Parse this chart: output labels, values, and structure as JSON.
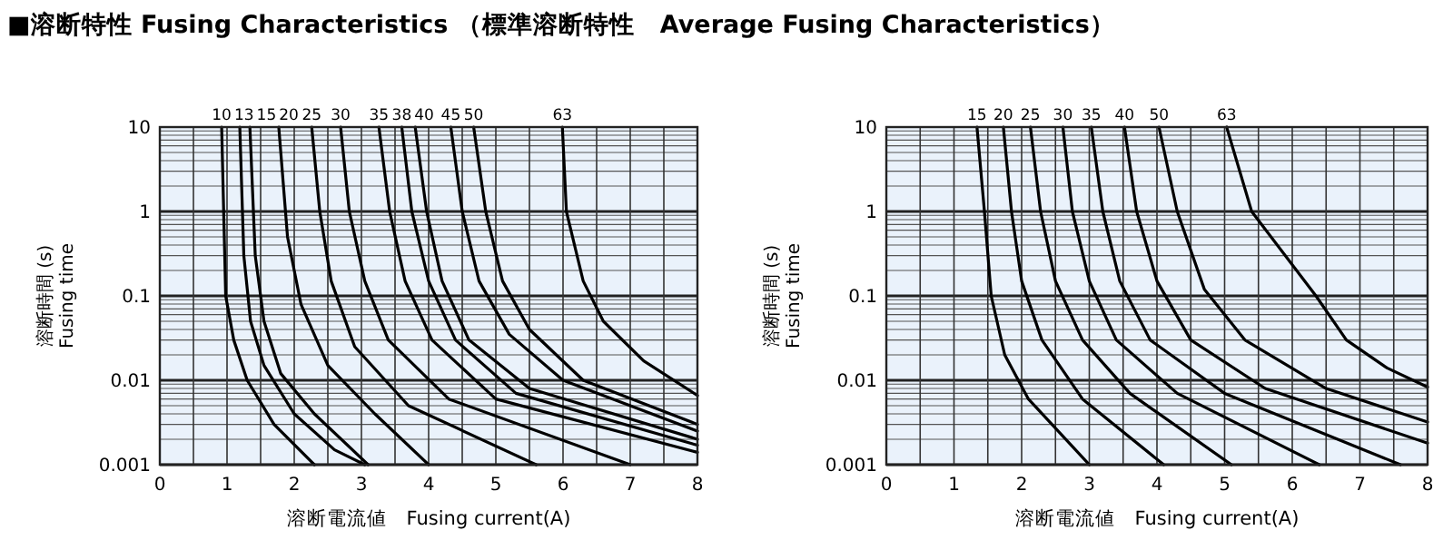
{
  "chart_data": [
    {
      "type": "line",
      "title": "■溶断特性  Fusing Characteristics （標準溶断特性　Average Fusing Characteristics）",
      "xlabel": "溶断電流値　Fusing current(A)",
      "ylabel": "溶断時間 (s)\nFusing time",
      "log": "y",
      "grid": true,
      "xlim": [
        0,
        8
      ],
      "ylim": [
        0.001,
        10
      ],
      "xticks": [
        0,
        1,
        2,
        3,
        4,
        5,
        6,
        7,
        8
      ],
      "yticks": [
        0.001,
        0.01,
        0.1,
        1,
        10
      ],
      "series": [
        {
          "name": "10",
          "color": "#000000",
          "x": [
            0.92,
            0.98,
            1.1,
            1.3,
            1.7,
            2.3
          ],
          "values": [
            10,
            0.1,
            0.03,
            0.01,
            0.003,
            0.001
          ]
        },
        {
          "name": "13",
          "color": "#000000",
          "x": [
            1.19,
            1.25,
            1.35,
            1.55,
            2.0,
            2.6,
            3.05
          ],
          "values": [
            10,
            0.3,
            0.05,
            0.015,
            0.004,
            0.0015,
            0.001
          ]
        },
        {
          "name": "15",
          "color": "#000000",
          "x": [
            1.34,
            1.42,
            1.55,
            1.8,
            2.3,
            3.1
          ],
          "values": [
            10,
            0.3,
            0.05,
            0.012,
            0.004,
            0.001
          ]
        },
        {
          "name": "20",
          "color": "#000000",
          "x": [
            1.77,
            1.9,
            2.1,
            2.5,
            3.2,
            4.0
          ],
          "values": [
            10,
            0.5,
            0.08,
            0.015,
            0.004,
            0.001
          ]
        },
        {
          "name": "25",
          "color": "#000000",
          "x": [
            2.26,
            2.38,
            2.55,
            2.9,
            3.7,
            5.6
          ],
          "values": [
            10,
            1,
            0.15,
            0.025,
            0.005,
            0.001
          ]
        },
        {
          "name": "30",
          "color": "#000000",
          "x": [
            2.69,
            2.82,
            3.05,
            3.4,
            4.3,
            7.0
          ],
          "values": [
            10,
            1,
            0.15,
            0.03,
            0.006,
            0.001
          ]
        },
        {
          "name": "35",
          "color": "#000000",
          "x": [
            3.26,
            3.42,
            3.65,
            4.05,
            5.0,
            8.0
          ],
          "values": [
            10,
            1,
            0.15,
            0.03,
            0.006,
            0.0014
          ]
        },
        {
          "name": "38",
          "color": "#000000",
          "x": [
            3.6,
            3.75,
            4.0,
            4.4,
            5.3,
            8.0
          ],
          "values": [
            10,
            1,
            0.15,
            0.03,
            0.007,
            0.0017
          ]
        },
        {
          "name": "40",
          "color": "#000000",
          "x": [
            3.8,
            3.97,
            4.2,
            4.6,
            5.5,
            8.0
          ],
          "values": [
            10,
            1,
            0.15,
            0.03,
            0.008,
            0.002
          ]
        },
        {
          "name": "45",
          "color": "#000000",
          "x": [
            4.33,
            4.5,
            4.75,
            5.2,
            6.0,
            8.0
          ],
          "values": [
            10,
            1,
            0.15,
            0.035,
            0.01,
            0.0025
          ]
        },
        {
          "name": "50",
          "color": "#000000",
          "x": [
            4.67,
            4.85,
            5.1,
            5.5,
            6.3,
            8.0
          ],
          "values": [
            10,
            1,
            0.15,
            0.04,
            0.01,
            0.003
          ]
        },
        {
          "name": "63",
          "color": "#000000",
          "x": [
            5.99,
            6.05,
            6.3,
            6.6,
            7.2,
            8.0
          ],
          "values": [
            10,
            1,
            0.15,
            0.05,
            0.017,
            0.0066
          ]
        }
      ]
    },
    {
      "type": "line",
      "xlabel": "溶断電流値　Fusing current(A)",
      "ylabel": "溶断時間 (s)\nFusing time",
      "log": "y",
      "grid": true,
      "xlim": [
        0,
        8
      ],
      "ylim": [
        0.001,
        10
      ],
      "xticks": [
        0,
        1,
        2,
        3,
        4,
        5,
        6,
        7,
        8
      ],
      "yticks": [
        0.001,
        0.01,
        0.1,
        1,
        10
      ],
      "series": [
        {
          "name": "15",
          "color": "#000000",
          "x": [
            1.34,
            1.45,
            1.55,
            1.75,
            2.1,
            3.0
          ],
          "values": [
            10,
            1,
            0.1,
            0.02,
            0.006,
            0.001
          ]
        },
        {
          "name": "20",
          "color": "#000000",
          "x": [
            1.73,
            1.85,
            2.0,
            2.3,
            2.9,
            4.1
          ],
          "values": [
            10,
            1,
            0.15,
            0.03,
            0.006,
            0.001
          ]
        },
        {
          "name": "25",
          "color": "#000000",
          "x": [
            2.13,
            2.28,
            2.5,
            2.9,
            3.6,
            5.1
          ],
          "values": [
            10,
            1,
            0.15,
            0.03,
            0.007,
            0.001
          ]
        },
        {
          "name": "30",
          "color": "#000000",
          "x": [
            2.61,
            2.75,
            3.0,
            3.4,
            4.3,
            6.4
          ],
          "values": [
            10,
            1,
            0.15,
            0.03,
            0.007,
            0.001
          ]
        },
        {
          "name": "35",
          "color": "#000000",
          "x": [
            3.03,
            3.2,
            3.45,
            3.9,
            5.0,
            7.6
          ],
          "values": [
            10,
            1,
            0.15,
            0.03,
            0.007,
            0.001
          ]
        },
        {
          "name": "40",
          "color": "#000000",
          "x": [
            3.52,
            3.7,
            4.0,
            4.5,
            5.6,
            8.0
          ],
          "values": [
            10,
            1,
            0.15,
            0.03,
            0.008,
            0.0018
          ]
        },
        {
          "name": "50",
          "color": "#000000",
          "x": [
            4.03,
            4.3,
            4.7,
            5.3,
            6.5,
            8.0
          ],
          "values": [
            10,
            1,
            0.12,
            0.03,
            0.008,
            0.0032
          ]
        },
        {
          "name": "63",
          "color": "#000000",
          "x": [
            5.03,
            5.4,
            6.35,
            6.8,
            7.4,
            8.0
          ],
          "values": [
            10,
            1,
            0.1,
            0.03,
            0.014,
            0.0083
          ]
        }
      ]
    }
  ]
}
